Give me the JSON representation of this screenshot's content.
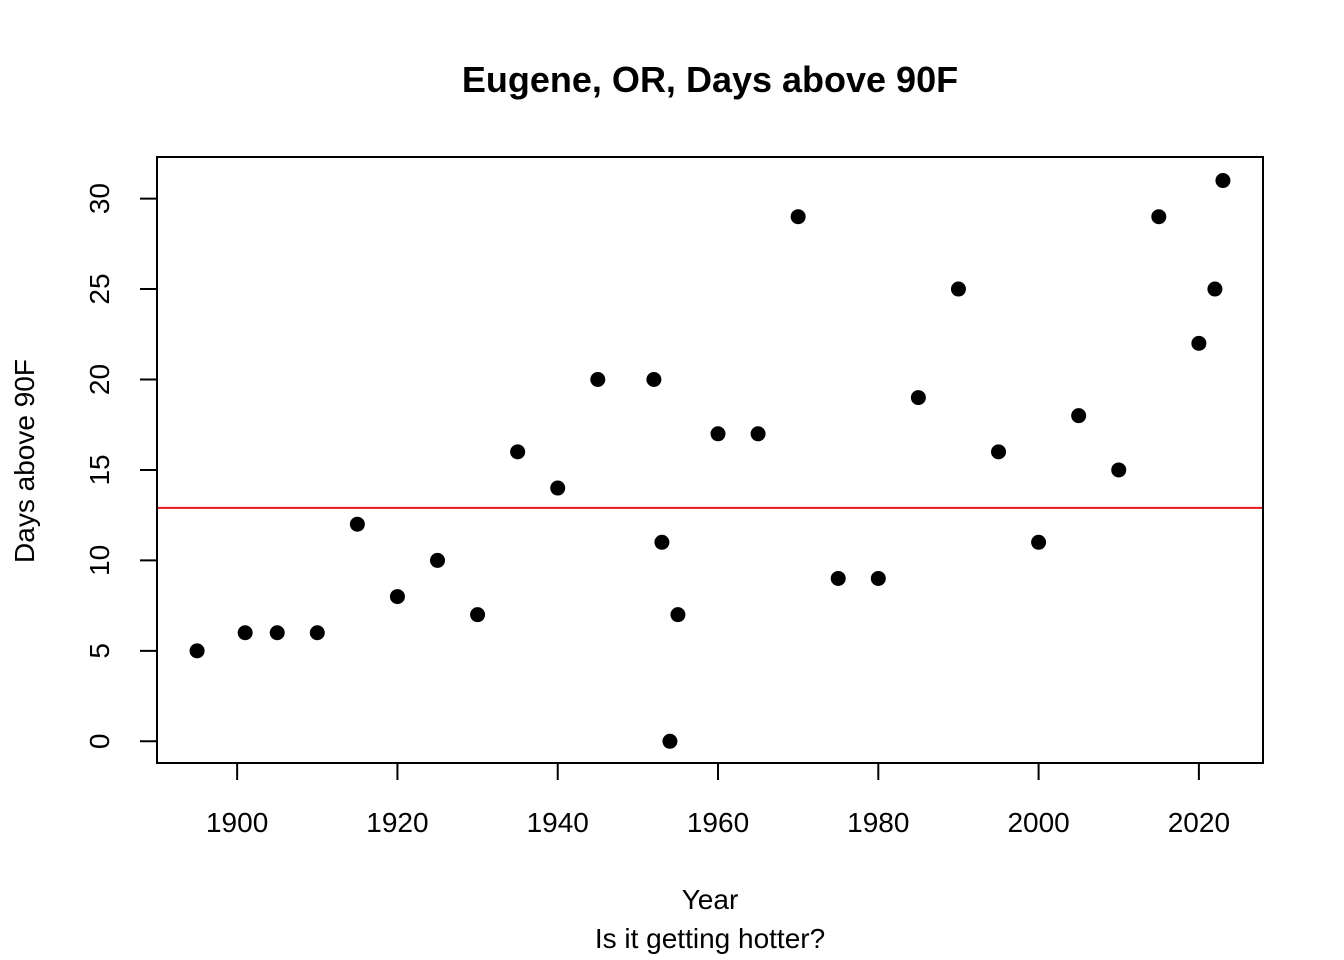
{
  "chart_data": {
    "type": "scatter",
    "title": "Eugene, OR, Days above 90F",
    "xlabel": "Year",
    "sub": "Is it getting hotter?",
    "ylabel": "Days above 90F",
    "xlim": [
      1890,
      2028
    ],
    "ylim": [
      -1.2,
      32.3
    ],
    "xticks": [
      1900,
      1920,
      1940,
      1960,
      1980,
      2000,
      2020
    ],
    "yticks": [
      0,
      5,
      10,
      15,
      20,
      25,
      30
    ],
    "grid": false,
    "legend": "none",
    "point_color": "#000000",
    "reference_line": {
      "orientation": "horizontal",
      "y": 12.9,
      "color": "#e41a1c"
    },
    "points": [
      {
        "x": 1895,
        "y": 5
      },
      {
        "x": 1901,
        "y": 6
      },
      {
        "x": 1905,
        "y": 6
      },
      {
        "x": 1910,
        "y": 6
      },
      {
        "x": 1915,
        "y": 12
      },
      {
        "x": 1920,
        "y": 8
      },
      {
        "x": 1925,
        "y": 10
      },
      {
        "x": 1930,
        "y": 7
      },
      {
        "x": 1935,
        "y": 16
      },
      {
        "x": 1940,
        "y": 14
      },
      {
        "x": 1945,
        "y": 20
      },
      {
        "x": 1952,
        "y": 20
      },
      {
        "x": 1953,
        "y": 11
      },
      {
        "x": 1954,
        "y": 0
      },
      {
        "x": 1955,
        "y": 7
      },
      {
        "x": 1960,
        "y": 17
      },
      {
        "x": 1965,
        "y": 17
      },
      {
        "x": 1970,
        "y": 29
      },
      {
        "x": 1975,
        "y": 9
      },
      {
        "x": 1980,
        "y": 9
      },
      {
        "x": 1985,
        "y": 19
      },
      {
        "x": 1990,
        "y": 25
      },
      {
        "x": 1995,
        "y": 16
      },
      {
        "x": 2000,
        "y": 11
      },
      {
        "x": 2005,
        "y": 18
      },
      {
        "x": 2010,
        "y": 15
      },
      {
        "x": 2015,
        "y": 29
      },
      {
        "x": 2020,
        "y": 22
      },
      {
        "x": 2022,
        "y": 25
      },
      {
        "x": 2023,
        "y": 31
      }
    ]
  }
}
